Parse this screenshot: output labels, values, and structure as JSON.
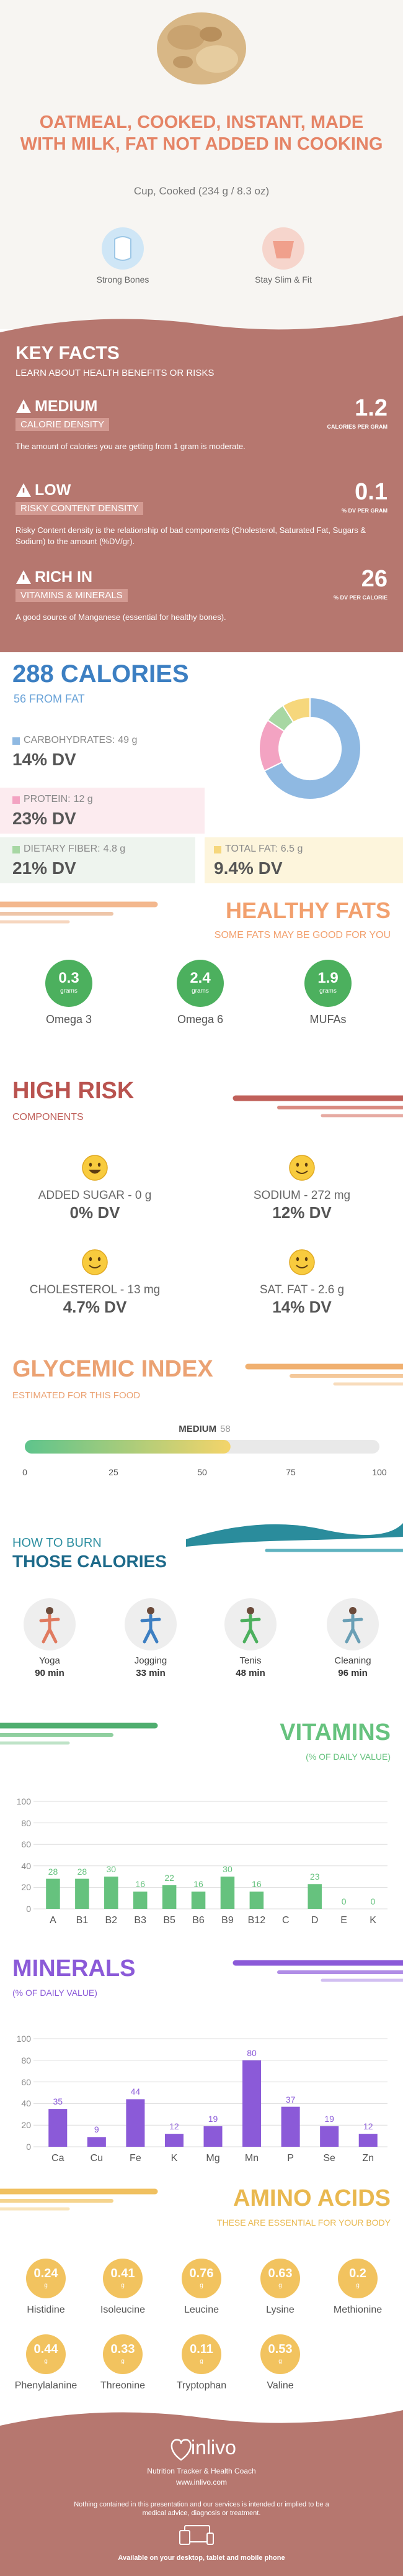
{
  "header": {
    "title": "OATMEAL, COOKED, INSTANT, MADE WITH MILK, FAT NOT ADDED IN COOKING",
    "subtitle": "Cup, Cooked (234 g / 8.3 oz)",
    "badges": [
      "Strong Bones",
      "Stay Slim & Fit"
    ]
  },
  "key_facts": {
    "title": "KEY FACTS",
    "subtitle": "LEARN ABOUT HEALTH BENEFITS OR RISKS",
    "facts": [
      {
        "level": "MEDIUM",
        "name": "CALORIE DENSITY",
        "value": 1.2,
        "unit": "CALORIES PER GRAM",
        "description": "The amount of calories you are getting from 1 gram is moderate."
      },
      {
        "level": "LOW",
        "name": "RISKY CONTENT DENSITY",
        "value": 0.1,
        "unit": "% DV PER GRAM",
        "description": "Risky Content density is the relationship of bad components (Cholesterol, Saturated Fat, Sugars & Sodium) to the amount (%DV/gr)."
      },
      {
        "level": "RICH IN",
        "name": "VITAMINS & MINERALS",
        "value": 26,
        "unit": "% DV PER CALORIE",
        "description": "A good source of Manganese (essential for healthy bones)."
      }
    ]
  },
  "calories": {
    "title": "288 CALORIES",
    "subtitle": "56 FROM FAT"
  },
  "chart_data": [
    {
      "type": "pie",
      "categories": [
        "CARBOHYDRATES:",
        "PROTEIN:",
        "DIETARY FIBER:",
        "TOTAL FAT:"
      ],
      "values": [
        49,
        12,
        4.8,
        6.5
      ],
      "value_labels": [
        "49 g",
        "12 g",
        "4.8 g",
        "6.5 g"
      ],
      "dv_labels": [
        "14% DV",
        "23% DV",
        "21% DV",
        "9.4% DV"
      ],
      "colors": [
        "#8fb9e2",
        "#f3a3c2",
        "#a7d7a3",
        "#f6d77c"
      ]
    },
    {
      "type": "bar",
      "title": "VITAMINS",
      "subtitle": "(% OF DAILY VALUE)",
      "categories": [
        "A",
        "B1",
        "B2",
        "B3",
        "B5",
        "B6",
        "B9",
        "B12",
        "C",
        "D",
        "E",
        "K"
      ],
      "values": [
        28,
        28,
        30,
        16,
        22,
        16,
        30,
        16,
        null,
        23,
        0,
        0
      ],
      "color": "#66c27e",
      "ylim": [
        0,
        100
      ],
      "yticks": [
        0,
        20,
        40,
        60,
        80,
        100
      ],
      "grid": true
    },
    {
      "type": "bar",
      "title": "MINERALS",
      "subtitle": "(% OF DAILY VALUE)",
      "categories": [
        "Ca",
        "Cu",
        "Fe",
        "K",
        "Mg",
        "Mn",
        "P",
        "Se",
        "Zn"
      ],
      "values": [
        35,
        9,
        44,
        12,
        19,
        80,
        37,
        19,
        12
      ],
      "color": "#8b5ad8",
      "ylim": [
        0,
        100
      ],
      "yticks": [
        0,
        20,
        40,
        60,
        80,
        100
      ],
      "grid": true
    }
  ],
  "healthy_fats": {
    "title": "HEALTHY FATS",
    "subtitle": "SOME FATS MAY BE GOOD FOR YOU",
    "unit": "grams",
    "items": [
      {
        "name": "Omega 3",
        "value": 0.3
      },
      {
        "name": "Omega 6",
        "value": 2.4
      },
      {
        "name": "MUFAs",
        "value": 1.9
      }
    ]
  },
  "high_risk": {
    "title": "HIGH RISK",
    "subtitle": "COMPONENTS",
    "items": [
      {
        "label": "ADDED SUGAR - 0 g",
        "dv": "0% DV"
      },
      {
        "label": "SODIUM - 272 mg",
        "dv": "12% DV"
      },
      {
        "label": "CHOLESTEROL - 13 mg",
        "dv": "4.7% DV"
      },
      {
        "label": "SAT. FAT - 2.6 g",
        "dv": "14% DV"
      }
    ]
  },
  "glycemic": {
    "title": "GLYCEMIC INDEX",
    "subtitle": "ESTIMATED FOR THIS FOOD",
    "level": "MEDIUM",
    "value": 58,
    "xlim": [
      0,
      100
    ],
    "xticks": [
      0,
      25,
      50,
      75,
      100
    ]
  },
  "burn": {
    "title": "HOW TO BURN",
    "subtitle": "THOSE CALORIES",
    "activities": [
      {
        "name": "Yoga",
        "duration": "90 min"
      },
      {
        "name": "Jogging",
        "duration": "33 min"
      },
      {
        "name": "Tenis",
        "duration": "48 min"
      },
      {
        "name": "Cleaning",
        "duration": "96 min"
      }
    ]
  },
  "amino_acids": {
    "title": "AMINO ACIDS",
    "subtitle": "THESE ARE ESSENTIAL FOR YOUR BODY",
    "unit": "g",
    "items": [
      {
        "name": "Histidine",
        "value": 0.24
      },
      {
        "name": "Isoleucine",
        "value": 0.41
      },
      {
        "name": "Leucine",
        "value": 0.76
      },
      {
        "name": "Lysine",
        "value": 0.63
      },
      {
        "name": "Methionine",
        "value": 0.2
      },
      {
        "name": "Phenylalanine",
        "value": 0.44
      },
      {
        "name": "Threonine",
        "value": 0.33
      },
      {
        "name": "Tryptophan",
        "value": 0.11
      },
      {
        "name": "Valine",
        "value": 0.53
      }
    ]
  },
  "footer": {
    "brand": "inlivo",
    "tagline": "Nutrition Tracker & Health Coach",
    "url": "www.inlivo.com",
    "disclaimer": "Nothing contained in this presentation and our services is intended or implied to be a medical advice, diagnosis or treatment.",
    "availability": "Available on your desktop, tablet and mobile phone"
  }
}
